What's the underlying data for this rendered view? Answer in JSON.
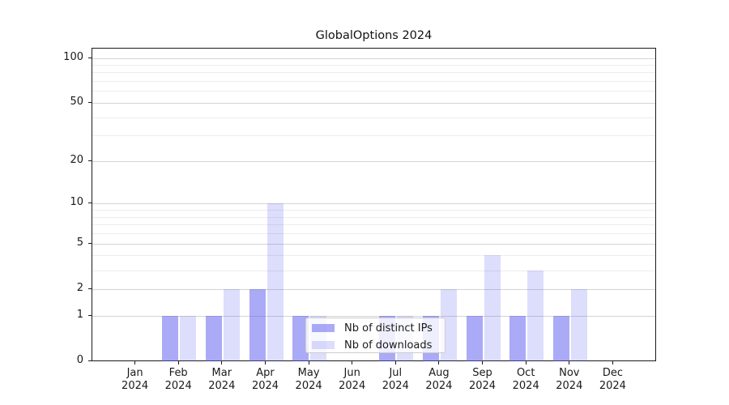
{
  "title": "GlobalOptions 2024",
  "legend": {
    "items": [
      {
        "label": "Nb of distinct IPs",
        "color": "rgba(85,85,238,0.5)"
      },
      {
        "label": "Nb of downloads",
        "color": "rgba(85,85,238,0.2)"
      }
    ]
  },
  "chart_data": {
    "type": "bar",
    "title": "GlobalOptions 2024",
    "categories": [
      "Jan 2024",
      "Feb 2024",
      "Mar 2024",
      "Apr 2024",
      "May 2024",
      "Jun 2024",
      "Jul 2024",
      "Aug 2024",
      "Sep 2024",
      "Oct 2024",
      "Nov 2024",
      "Dec 2024"
    ],
    "x_tick_labels": [
      {
        "month": "Jan",
        "year": "2024"
      },
      {
        "month": "Feb",
        "year": "2024"
      },
      {
        "month": "Mar",
        "year": "2024"
      },
      {
        "month": "Apr",
        "year": "2024"
      },
      {
        "month": "May",
        "year": "2024"
      },
      {
        "month": "Jun",
        "year": "2024"
      },
      {
        "month": "Jul",
        "year": "2024"
      },
      {
        "month": "Aug",
        "year": "2024"
      },
      {
        "month": "Sep",
        "year": "2024"
      },
      {
        "month": "Oct",
        "year": "2024"
      },
      {
        "month": "Nov",
        "year": "2024"
      },
      {
        "month": "Dec",
        "year": "2024"
      }
    ],
    "series": [
      {
        "name": "Nb of distinct IPs",
        "color": "rgba(85,85,238,0.5)",
        "values": [
          0,
          1,
          1,
          2,
          1,
          0,
          1,
          1,
          1,
          1,
          1,
          0
        ]
      },
      {
        "name": "Nb of downloads",
        "color": "rgba(85,85,238,0.2)",
        "values": [
          0,
          1,
          2,
          10,
          1,
          0,
          1,
          2,
          4,
          3,
          2,
          0
        ]
      }
    ],
    "xlabel": "",
    "ylabel": "",
    "y_scale": "log1p",
    "ylim": [
      0,
      114
    ],
    "y_major_ticks": [
      0,
      1,
      2,
      5,
      10,
      20,
      50,
      100
    ],
    "y_minor_gridlines": [
      3,
      4,
      6,
      7,
      8,
      9,
      30,
      40,
      60,
      70,
      80,
      90
    ],
    "grid": "both",
    "legend_position": "lower center"
  }
}
